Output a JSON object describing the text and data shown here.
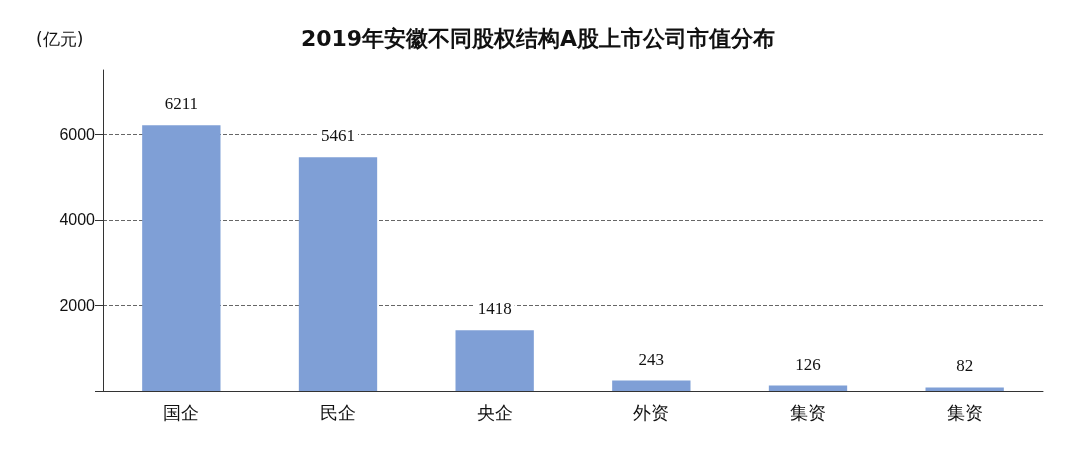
{
  "chart_data": {
    "type": "bar",
    "title": "2019年安徽不同股权结构A股上市公司市值分布",
    "ylabel": "(亿元)",
    "categories": [
      "国企",
      "民企",
      "央企",
      "外资",
      "集资",
      "集资"
    ],
    "values": [
      6211,
      5461,
      1418,
      243,
      126,
      82
    ],
    "color": "#7f9fd6",
    "ylim": [
      0,
      7500
    ],
    "yticks": [
      {
        "value": 0,
        "label": null
      },
      2000,
      4000,
      6000
    ],
    "grid": "y",
    "data_labels": true
  }
}
